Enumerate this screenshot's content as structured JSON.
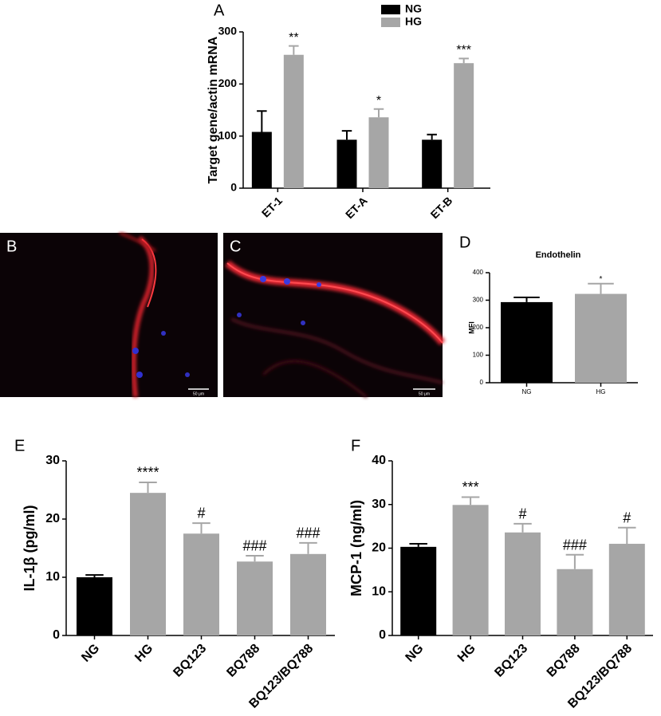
{
  "chart_data": [
    {
      "type": "bar",
      "panel": "A",
      "y_label": "Target gene/actin mRNA",
      "categories": [
        "ET-1",
        "ET-A",
        "ET-B"
      ],
      "series": [
        {
          "name": "NG",
          "color": "#000000",
          "values": [
            108,
            93,
            93
          ],
          "errors": [
            40,
            17,
            10
          ],
          "annotations": [
            null,
            null,
            null
          ]
        },
        {
          "name": "HG",
          "color": "#a6a6a6",
          "values": [
            256,
            136,
            240
          ],
          "errors": [
            17,
            16,
            9
          ],
          "annotations": [
            "**",
            "*",
            "***"
          ]
        }
      ],
      "ylim": [
        0,
        300
      ],
      "yticks": [
        0,
        100,
        200,
        300
      ]
    },
    {
      "type": "bar",
      "panel": "D",
      "title": "Endothelin",
      "y_label": "MFI",
      "categories": [
        "NG",
        "HG"
      ],
      "series": [
        {
          "colors": [
            "#000000",
            "#a6a6a6"
          ],
          "values": [
            293,
            323
          ],
          "errors": [
            17,
            37
          ],
          "annotations": [
            null,
            "*"
          ]
        }
      ],
      "ylim": [
        0,
        400
      ],
      "yticks": [
        0,
        100,
        200,
        300,
        400
      ]
    },
    {
      "type": "bar",
      "panel": "E",
      "y_label": "IL-1β (pg/ml)",
      "categories": [
        "NG",
        "HG",
        "BQ123",
        "BQ788",
        "BQ123/BQ788"
      ],
      "series": [
        {
          "colors": [
            "#000000",
            "#a6a6a6",
            "#a6a6a6",
            "#a6a6a6",
            "#a6a6a6"
          ],
          "values": [
            10,
            24.5,
            17.5,
            12.7,
            14
          ],
          "errors": [
            0.4,
            1.8,
            1.8,
            1,
            1.9
          ],
          "annotations": [
            null,
            "****",
            "#",
            "###",
            "###"
          ]
        }
      ],
      "ylim": [
        0,
        30
      ],
      "yticks": [
        0,
        10,
        20,
        30
      ]
    },
    {
      "type": "bar",
      "panel": "F",
      "y_label": "MCP-1 (ng/ml)",
      "categories": [
        "NG",
        "HG",
        "BQ123",
        "BQ788",
        "BQ123/BQ788"
      ],
      "series": [
        {
          "colors": [
            "#000000",
            "#a6a6a6",
            "#a6a6a6",
            "#a6a6a6",
            "#a6a6a6"
          ],
          "values": [
            20.3,
            29.9,
            23.6,
            15.2,
            21
          ],
          "errors": [
            0.7,
            1.8,
            2,
            3.3,
            3.7
          ],
          "annotations": [
            null,
            "***",
            "#",
            "###",
            "#"
          ]
        }
      ],
      "ylim": [
        0,
        40
      ],
      "yticks": [
        0,
        10,
        20,
        30,
        40
      ]
    }
  ],
  "images": [
    {
      "panel": "B",
      "scale_bar": "50 μm"
    },
    {
      "panel": "C",
      "scale_bar": "50 μm"
    }
  ]
}
